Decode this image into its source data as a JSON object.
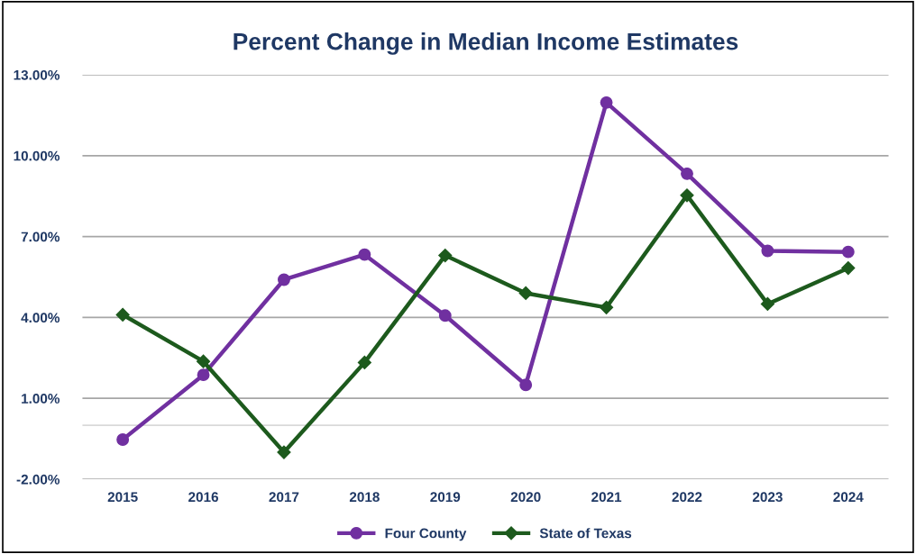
{
  "chart_data": {
    "type": "line",
    "title": "Percent Change in Median Income Estimates",
    "categories": [
      "2015",
      "2016",
      "2017",
      "2018",
      "2019",
      "2020",
      "2021",
      "2022",
      "2023",
      "2024"
    ],
    "series": [
      {
        "name": "Four County",
        "color": "#7030a0",
        "marker": "circle",
        "values": [
          -0.53,
          1.87,
          5.4,
          6.33,
          4.07,
          1.5,
          11.97,
          9.33,
          6.47,
          6.43
        ]
      },
      {
        "name": "State of Texas",
        "color": "#1d5a1d",
        "marker": "diamond",
        "values": [
          4.1,
          2.37,
          -1.0,
          2.33,
          6.3,
          4.9,
          4.37,
          8.53,
          4.5,
          5.83
        ]
      }
    ],
    "ylim": [
      -2,
      13
    ],
    "yticks": [
      {
        "value": -2,
        "label": "-2.00%"
      },
      {
        "value": 1,
        "label": "1.00%"
      },
      {
        "value": 4,
        "label": "4.00%"
      },
      {
        "value": 7,
        "label": "7.00%"
      },
      {
        "value": 10,
        "label": "10.00%"
      },
      {
        "value": 13,
        "label": "13.00%"
      }
    ],
    "ref_lines": [
      {
        "axis": "y",
        "value": 0,
        "color": "#d9d9d9"
      }
    ],
    "grid": "y",
    "legend": "bottom",
    "line_style": "solid"
  }
}
